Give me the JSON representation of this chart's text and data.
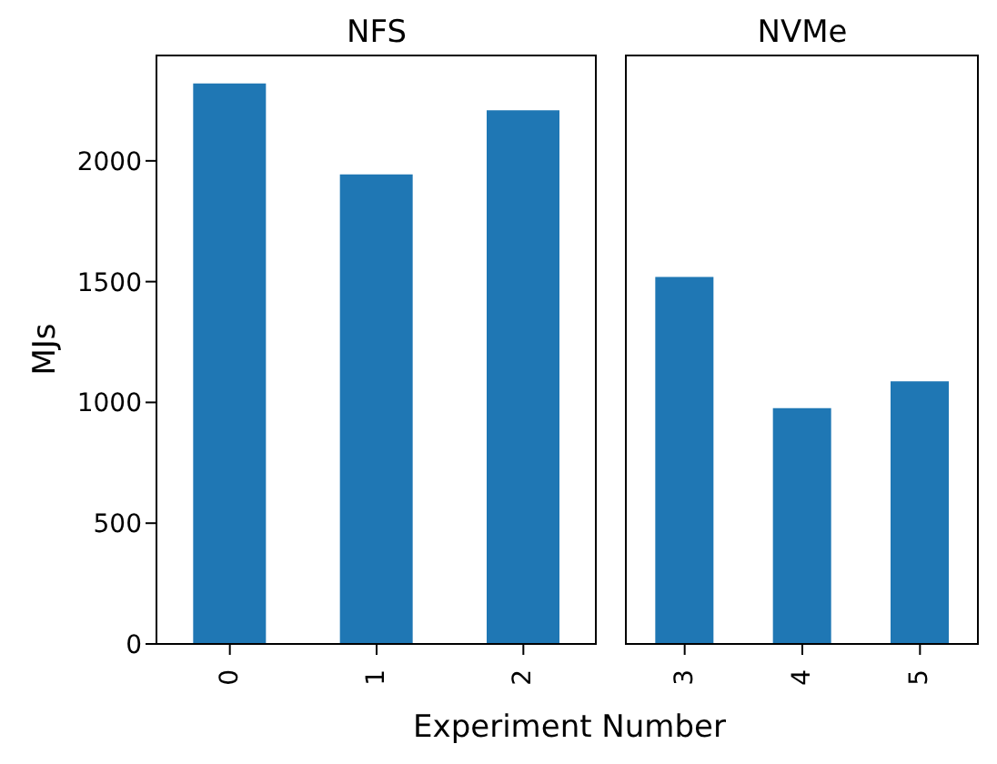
{
  "chart_data": [
    {
      "type": "bar",
      "title": "NFS",
      "ylabel": "MJs",
      "xlabel": "Experiment Number",
      "categories": [
        "0",
        "1",
        "2"
      ],
      "values": [
        2320,
        1944,
        2209
      ],
      "color": "#1f77b4",
      "ylim": [
        0,
        2440
      ],
      "yticks": [
        0,
        500,
        1000,
        1500,
        2000
      ],
      "grid": false,
      "legend": false
    },
    {
      "type": "bar",
      "title": "NVMe",
      "categories": [
        "3",
        "4",
        "5"
      ],
      "values": [
        1519,
        976,
        1087
      ],
      "color": "#1f77b4",
      "ylim": [
        0,
        2440
      ],
      "yticks": [
        0,
        500,
        1000,
        1500,
        2000
      ],
      "grid": false,
      "legend": false,
      "tick_labels": "x"
    }
  ]
}
